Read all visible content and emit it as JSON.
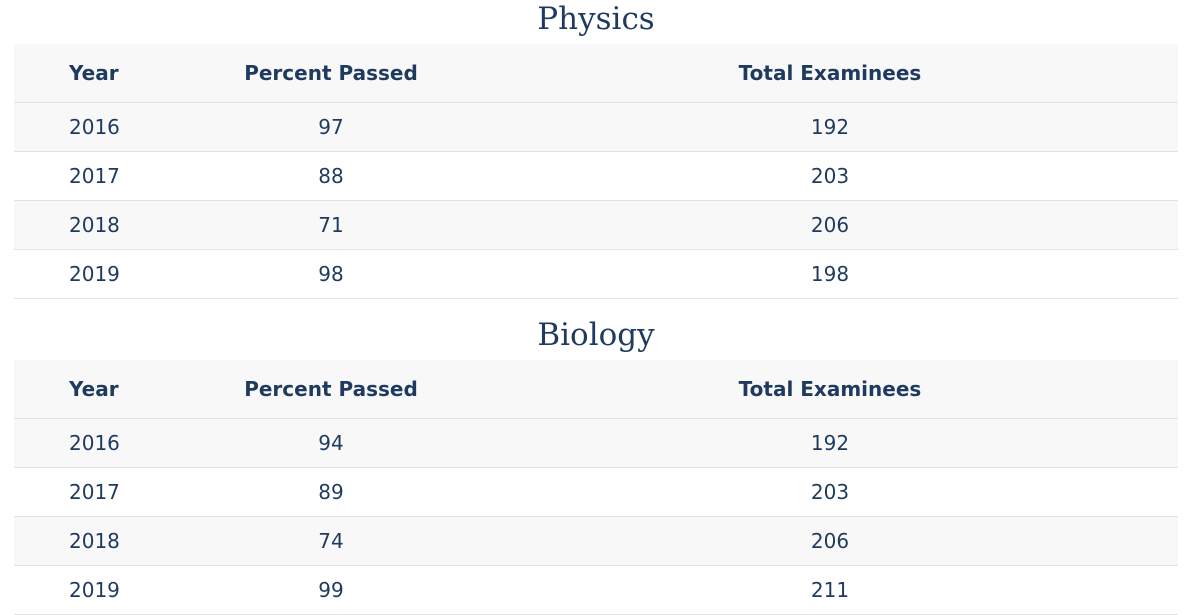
{
  "tables": [
    {
      "title": "Physics",
      "header": [
        "Year",
        "Percent Passed",
        "Total Examinees"
      ],
      "rows": [
        [
          "2016",
          "97",
          "192"
        ],
        [
          "2017",
          "88",
          "203"
        ],
        [
          "2018",
          "71",
          "206"
        ],
        [
          "2019",
          "98",
          "198"
        ]
      ]
    },
    {
      "title": "Biology",
      "header": [
        "Year",
        "Percent Passed",
        "Total Examinees"
      ],
      "rows": [
        [
          "2016",
          "94",
          "192"
        ],
        [
          "2017",
          "89",
          "203"
        ],
        [
          "2018",
          "74",
          "206"
        ],
        [
          "2019",
          "99",
          "211"
        ]
      ]
    }
  ]
}
